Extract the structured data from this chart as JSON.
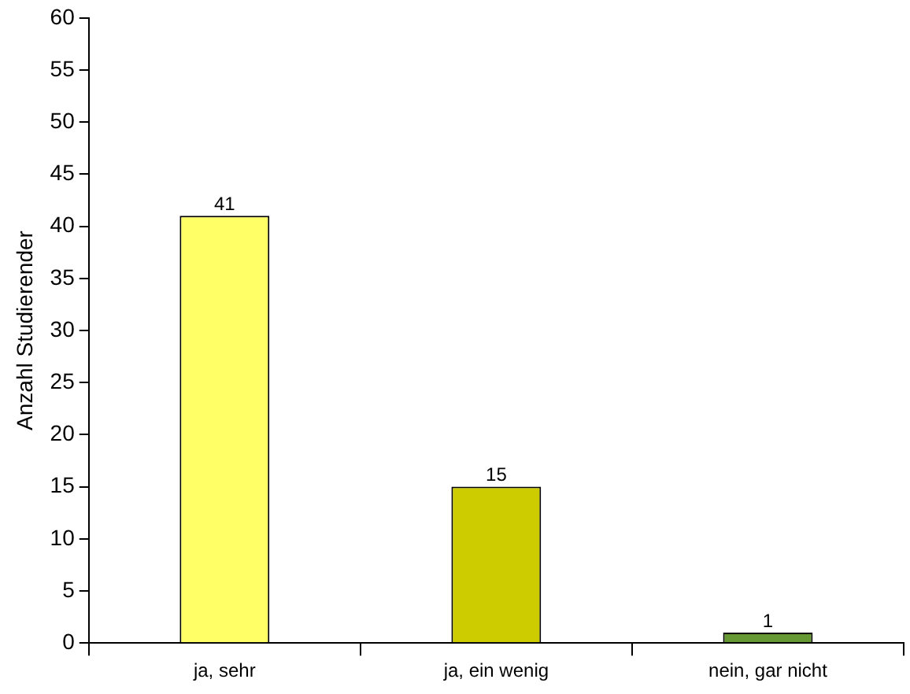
{
  "chart_data": {
    "type": "bar",
    "ylabel": "Anzahl Studierender",
    "categories": [
      "ja, sehr",
      "ja, ein wenig",
      "nein, gar nicht"
    ],
    "values": [
      41,
      15,
      1
    ],
    "colors": [
      "#ffff66",
      "#cccc00",
      "#669933"
    ],
    "ylim": [
      0,
      60
    ],
    "yticks": [
      0,
      5,
      10,
      15,
      20,
      25,
      30,
      35,
      40,
      45,
      50,
      55,
      60
    ],
    "data_labels": true,
    "grid": false,
    "legend": false
  }
}
